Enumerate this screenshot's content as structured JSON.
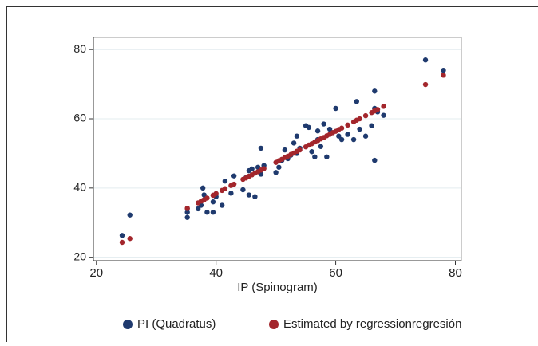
{
  "chart_data": {
    "type": "scatter",
    "xlabel": "IP (Spinogram)",
    "x": [
      24.3,
      25.6,
      35.2,
      35.2,
      37,
      37.5,
      38,
      37.8,
      38.5,
      39.5,
      39.5,
      40,
      41,
      41.5,
      42.5,
      43,
      44.5,
      45,
      45.5,
      45.5,
      46,
      46.5,
      47,
      47.5,
      47.5,
      48,
      50,
      50.5,
      51,
      51.5,
      52,
      52.5,
      53,
      53.5,
      53.5,
      54,
      55,
      55.5,
      56,
      56.5,
      57,
      57,
      57.5,
      58,
      58.5,
      59,
      59.5,
      60,
      60.5,
      61,
      62,
      63,
      63.5,
      64,
      65,
      66,
      66.5,
      66.5,
      66.5,
      67,
      68,
      75,
      78
    ],
    "series": [
      {
        "name": "PI (Quadratus)",
        "color": "#1f3a6e",
        "values": [
          26.3,
          32.2,
          31.5,
          33,
          34,
          35,
          38,
          40,
          33,
          33,
          36,
          37.5,
          35,
          42,
          38.5,
          43.5,
          39.5,
          43,
          38,
          45,
          45.5,
          37.5,
          46,
          44,
          51.5,
          46.5,
          44.5,
          46,
          48,
          51,
          48.5,
          49.5,
          53,
          50,
          55,
          51.5,
          58,
          57.5,
          50.5,
          49,
          54,
          56.5,
          52,
          58.5,
          49,
          57,
          56,
          63,
          55,
          54,
          55.5,
          54,
          65,
          57,
          55,
          58,
          63,
          68,
          48,
          62,
          61,
          77,
          74
        ]
      },
      {
        "name": "Estimated by regressionregresión",
        "color": "#a3262c",
        "values": [
          24.3,
          25.4,
          34.1,
          34.1,
          35.7,
          36.2,
          36.6,
          36.4,
          37.1,
          37.9,
          37.9,
          38.4,
          39.3,
          39.8,
          40.7,
          41.1,
          42.5,
          42.9,
          43.4,
          43.4,
          43.8,
          44.3,
          44.7,
          45.2,
          45.2,
          45.6,
          47.4,
          47.9,
          48.3,
          48.8,
          49.2,
          49.7,
          50.1,
          50.6,
          50.6,
          51,
          51.9,
          52.4,
          52.8,
          53.3,
          53.7,
          53.7,
          54.2,
          54.6,
          55.1,
          55.5,
          56,
          56.4,
          56.9,
          57.3,
          58.2,
          59.1,
          59.6,
          60,
          60.9,
          61.8,
          62.3,
          62.3,
          62.3,
          62.7,
          63.6,
          69.9,
          72.6
        ]
      }
    ],
    "xlim": [
      19.5,
      81
    ],
    "ylim": [
      19,
      83.5
    ],
    "xticks": [
      20,
      40,
      60,
      80
    ],
    "yticks": [
      20,
      40,
      60,
      80
    ],
    "grid": true,
    "legend": "bottom"
  }
}
